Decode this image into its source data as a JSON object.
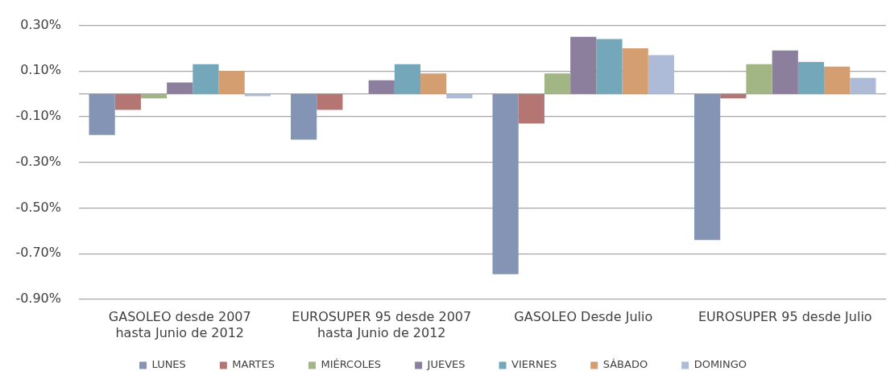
{
  "chart_data": {
    "type": "bar",
    "categories": [
      "GASOLEO desde 2007\nhasta Junio de 2012",
      "EUROSUPER 95 desde 2007\nhasta Junio de 2012",
      "GASOLEO Desde Julio",
      "EUROSUPER 95 desde Julio"
    ],
    "series": [
      {
        "name": "LUNES",
        "color": "#8494b4",
        "values": [
          -0.18,
          -0.2,
          -0.79,
          -0.64
        ]
      },
      {
        "name": "MARTES",
        "color": "#b57673",
        "values": [
          -0.07,
          -0.07,
          -0.13,
          -0.02
        ]
      },
      {
        "name": "MIÉRCOLES",
        "color": "#a2b584",
        "values": [
          -0.02,
          0,
          0.09,
          0.13
        ]
      },
      {
        "name": "JUEVES",
        "color": "#8c7f9e",
        "values": [
          0.05,
          0.06,
          0.25,
          0.19
        ]
      },
      {
        "name": "VIERNES",
        "color": "#74a7b9",
        "values": [
          0.13,
          0.13,
          0.24,
          0.14
        ]
      },
      {
        "name": "SÁBADO",
        "color": "#d59e70",
        "values": [
          0.1,
          0.09,
          0.2,
          0.12
        ]
      },
      {
        "name": "DOMINGO",
        "color": "#aebbd6",
        "values": [
          -0.01,
          -0.02,
          0.17,
          0.07
        ]
      }
    ],
    "ylim": [
      -0.9,
      0.3
    ],
    "yticks": [
      {
        "value": -0.9,
        "label": "-0.90%"
      },
      {
        "value": -0.7,
        "label": "-0.70%"
      },
      {
        "value": -0.5,
        "label": "-0.50%"
      },
      {
        "value": -0.3,
        "label": "-0.30%"
      },
      {
        "value": -0.1,
        "label": "-0.10%"
      },
      {
        "value": 0.1,
        "label": "0.10%"
      },
      {
        "value": 0.3,
        "label": "0.30%"
      }
    ],
    "grid": "y",
    "legend": "bottom"
  }
}
